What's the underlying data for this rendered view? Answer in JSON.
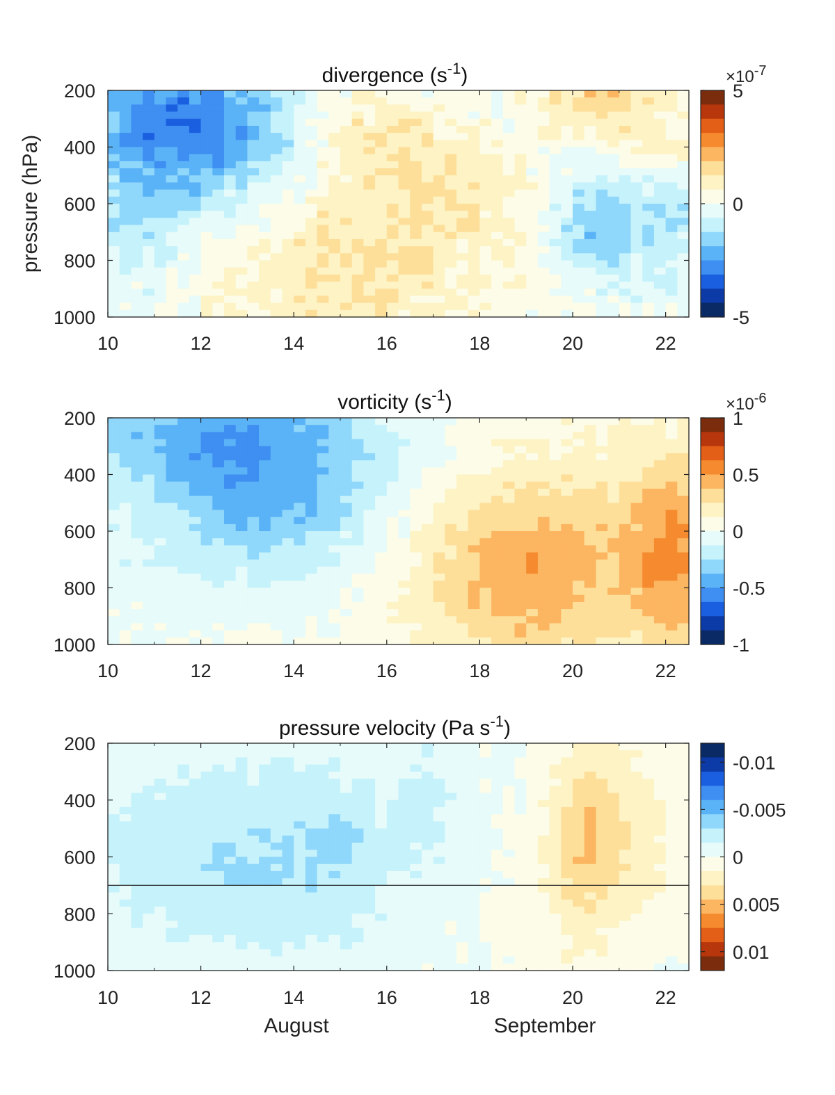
{
  "chart_data": [
    {
      "type": "heatmap",
      "title_main": "divergence (s",
      "title_sup": "-1",
      "title_end": ")",
      "ylabel": "pressure (hPa)",
      "xlim": [
        10,
        22.5
      ],
      "ylim": [
        200,
        1000
      ],
      "xticks": [
        "10",
        "12",
        "14",
        "16",
        "18",
        "20",
        "22"
      ],
      "yticks": [
        "200",
        "400",
        "600",
        "800",
        "1000"
      ],
      "colorbar": {
        "range": [
          -5,
          5
        ],
        "direction": "positive-top",
        "multiplier_prefix": "×10",
        "multiplier_exp": "-7",
        "ticks": [
          {
            "v": 5,
            "label": "5"
          },
          {
            "v": 0,
            "label": "0"
          },
          {
            "v": -5,
            "label": "-5"
          }
        ]
      },
      "seed": 11,
      "features": [
        {
          "x": 11.5,
          "y": 310,
          "sx": 1.6,
          "sy": 180,
          "a": -2.4
        },
        {
          "x": 10.6,
          "y": 650,
          "sx": 1.1,
          "sy": 260,
          "a": -1.0
        },
        {
          "x": 13.0,
          "y": 380,
          "sx": 1.4,
          "sy": 170,
          "a": -1.0
        },
        {
          "x": 15.0,
          "y": 850,
          "sx": 2.2,
          "sy": 230,
          "a": 1.1
        },
        {
          "x": 15.6,
          "y": 330,
          "sx": 1.3,
          "sy": 130,
          "a": 0.9
        },
        {
          "x": 17.3,
          "y": 520,
          "sx": 1.6,
          "sy": 200,
          "a": 0.8
        },
        {
          "x": 20.5,
          "y": 230,
          "sx": 1.2,
          "sy": 90,
          "a": 1.6
        },
        {
          "x": 21.6,
          "y": 430,
          "sx": 0.7,
          "sy": 70,
          "a": 1.2
        },
        {
          "x": 20.4,
          "y": 660,
          "sx": 0.7,
          "sy": 150,
          "a": -1.7
        },
        {
          "x": 21.9,
          "y": 640,
          "sx": 0.7,
          "sy": 180,
          "a": -1.3
        },
        {
          "x": 18.2,
          "y": 260,
          "sx": 1.2,
          "sy": 130,
          "a": -0.7
        }
      ],
      "noise": 0.55,
      "base": 0.1
    },
    {
      "type": "heatmap",
      "title_main": "vorticity (s",
      "title_sup": "-1",
      "title_end": ")",
      "ylabel": "",
      "xlim": [
        10,
        22.5
      ],
      "ylim": [
        200,
        1000
      ],
      "xticks": [
        "10",
        "12",
        "14",
        "16",
        "18",
        "20",
        "22"
      ],
      "yticks": [
        "200",
        "400",
        "600",
        "800",
        "1000"
      ],
      "colorbar": {
        "range": [
          -1,
          1
        ],
        "direction": "positive-top",
        "multiplier_prefix": "×10",
        "multiplier_exp": "-6",
        "ticks": [
          {
            "v": 1,
            "label": "1"
          },
          {
            "v": 0.5,
            "label": "0.5"
          },
          {
            "v": 0,
            "label": "0"
          },
          {
            "v": -0.5,
            "label": "-0.5"
          },
          {
            "v": -1,
            "label": "-1"
          }
        ]
      },
      "seed": 23,
      "features": [
        {
          "x": 12.5,
          "y": 250,
          "sx": 2.6,
          "sy": 150,
          "a": -0.42
        },
        {
          "x": 13.6,
          "y": 500,
          "sx": 1.6,
          "sy": 160,
          "a": -0.3
        },
        {
          "x": 12.0,
          "y": 650,
          "sx": 3.0,
          "sy": 200,
          "a": -0.12
        },
        {
          "x": 19.0,
          "y": 780,
          "sx": 1.7,
          "sy": 220,
          "a": 0.42
        },
        {
          "x": 22.2,
          "y": 700,
          "sx": 0.7,
          "sy": 250,
          "a": 0.4
        },
        {
          "x": 20.5,
          "y": 480,
          "sx": 2.5,
          "sy": 200,
          "a": 0.12
        }
      ],
      "noise": 0.06,
      "base": 0.03
    },
    {
      "type": "heatmap",
      "title_main": "pressure velocity (Pa s",
      "title_sup": "-1",
      "title_end": ")",
      "ylabel": "",
      "xlim": [
        10,
        22.5
      ],
      "ylim": [
        200,
        1000
      ],
      "xticks": [
        "10",
        "12",
        "14",
        "16",
        "18",
        "20",
        "22"
      ],
      "yticks": [
        "200",
        "400",
        "600",
        "800",
        "1000"
      ],
      "month_labels": [
        "August",
        "September"
      ],
      "hline_p": 700,
      "colorbar": {
        "range": [
          -0.012,
          0.012
        ],
        "direction": "positive-bottom",
        "multiplier_prefix": "",
        "multiplier_exp": "",
        "ticks": [
          {
            "v": -0.01,
            "label": "-0.01"
          },
          {
            "v": -0.005,
            "label": "-0.005"
          },
          {
            "v": 0,
            "label": "0"
          },
          {
            "v": 0.005,
            "label": "0.005"
          },
          {
            "v": 0.01,
            "label": "0.01"
          }
        ]
      },
      "seed": 37,
      "features": [
        {
          "x": 11.8,
          "y": 600,
          "sx": 1.6,
          "sy": 250,
          "a": 0.0022
        },
        {
          "x": 14.6,
          "y": 600,
          "sx": 1.4,
          "sy": 260,
          "a": 0.0022
        },
        {
          "x": 15.0,
          "y": 540,
          "sx": 0.3,
          "sy": 60,
          "a": 0.0018
        },
        {
          "x": 16.9,
          "y": 400,
          "sx": 0.6,
          "sy": 180,
          "a": 0.0012
        },
        {
          "x": 20.2,
          "y": 500,
          "sx": 0.5,
          "sy": 230,
          "a": -0.003
        },
        {
          "x": 21.2,
          "y": 520,
          "sx": 0.9,
          "sy": 240,
          "a": -0.0025
        },
        {
          "x": 19.8,
          "y": 800,
          "sx": 1.0,
          "sy": 300,
          "a": -0.001
        }
      ],
      "noise": 0.0005,
      "base": 0.0002
    }
  ]
}
